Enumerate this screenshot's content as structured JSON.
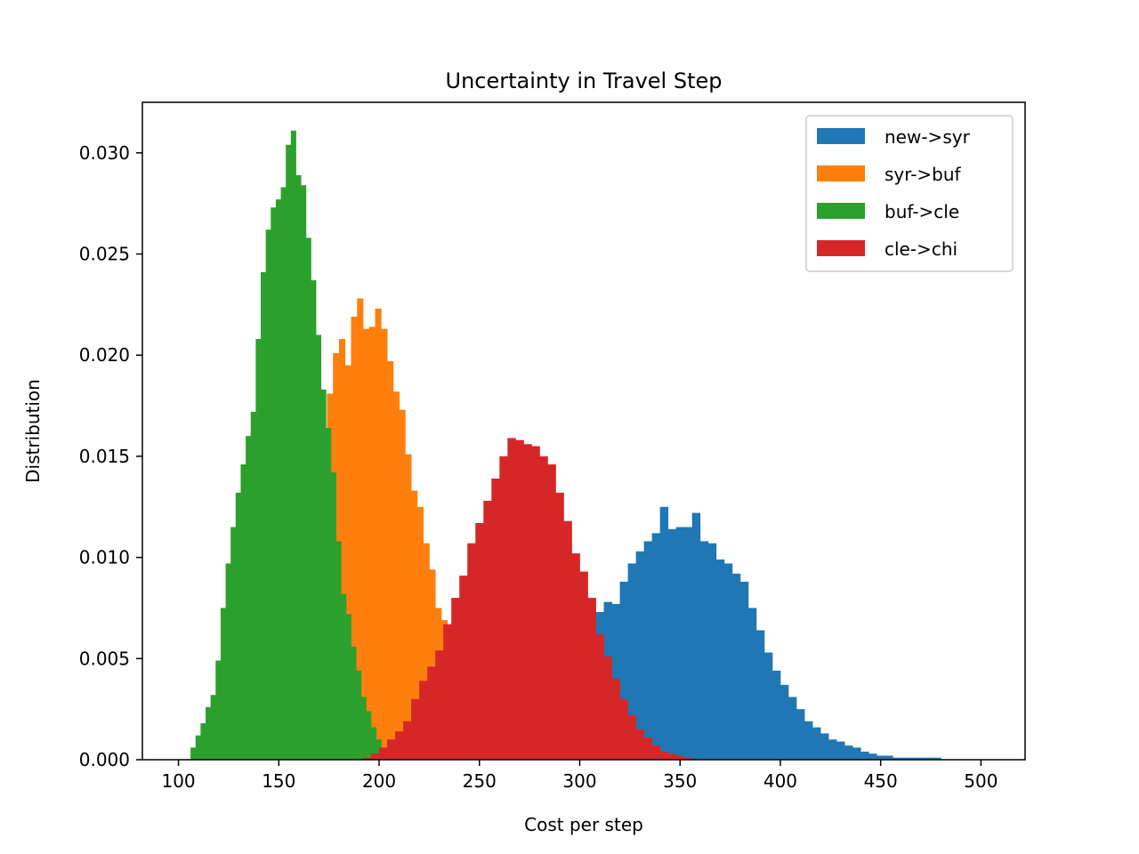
{
  "chart_data": {
    "type": "histogram",
    "title": "Uncertainty in Travel Step",
    "xlabel": "Cost per step",
    "ylabel": "Distribution",
    "xlim": [
      82,
      1000000000.0
    ],
    "xlim_display": [
      82,
      522
    ],
    "ylim": [
      0,
      0.0325
    ],
    "xticks": [
      100,
      150,
      200,
      250,
      300,
      350,
      400,
      450,
      500
    ],
    "yticks": [
      0.0,
      0.005,
      0.01,
      0.015,
      0.02,
      0.025,
      0.03
    ],
    "ytick_labels": [
      "0.000",
      "0.005",
      "0.010",
      "0.015",
      "0.020",
      "0.025",
      "0.030"
    ],
    "grid": false,
    "legend_position": "top-right",
    "series": [
      {
        "name": "new->syr",
        "color": "#1f77b4",
        "bin_start": 300,
        "bin_width": 4,
        "values": [
          0.0055,
          0.0065,
          0.0073,
          0.0078,
          0.0077,
          0.0088,
          0.0097,
          0.0103,
          0.0108,
          0.0112,
          0.0125,
          0.0114,
          0.0115,
          0.0115,
          0.0122,
          0.0108,
          0.0107,
          0.0099,
          0.0097,
          0.0092,
          0.0088,
          0.0075,
          0.0064,
          0.0053,
          0.0044,
          0.0037,
          0.0031,
          0.0025,
          0.0019,
          0.0016,
          0.0013,
          0.001,
          0.0009,
          0.0007,
          0.0006,
          0.0004,
          0.0003,
          0.0002,
          0.0002,
          0.0001,
          0.0001,
          0.0001,
          0.0001,
          0.0001,
          0.0001,
          0.0,
          0.0,
          0.0,
          0.0,
          0.0,
          0.0,
          0.0,
          0.0
        ]
      },
      {
        "name": "syr->buf",
        "color": "#ff7f0e",
        "bin_start": 165,
        "bin_width": 3,
        "values": [
          0.0123,
          0.0136,
          0.0164,
          0.0181,
          0.0201,
          0.0208,
          0.0195,
          0.0219,
          0.0228,
          0.0213,
          0.0214,
          0.0223,
          0.0213,
          0.0197,
          0.0182,
          0.0173,
          0.0151,
          0.0133,
          0.0125,
          0.0107,
          0.0094,
          0.0075,
          0.0069,
          0.0061,
          0.0049,
          0.0035,
          0.0028
        ]
      },
      {
        "name": "buf->cle",
        "color": "#2ca02c",
        "bin_start": 106,
        "bin_width": 2.5,
        "values": [
          0.0006,
          0.0012,
          0.0018,
          0.0026,
          0.0032,
          0.0049,
          0.0075,
          0.0097,
          0.0115,
          0.0132,
          0.0146,
          0.016,
          0.0172,
          0.0208,
          0.0241,
          0.0262,
          0.0273,
          0.0277,
          0.0283,
          0.0304,
          0.0311,
          0.0289,
          0.0284,
          0.0258,
          0.0237,
          0.021,
          0.0183,
          0.0164,
          0.0142,
          0.0108,
          0.0082,
          0.0072,
          0.0056,
          0.0044,
          0.0031,
          0.0024,
          0.0016,
          0.001,
          0.0005,
          0.0002
        ]
      },
      {
        "name": "cle->chi",
        "color": "#d62728",
        "bin_start": 192,
        "bin_width": 4,
        "values": [
          0.0001,
          0.0003,
          0.0006,
          0.001,
          0.0014,
          0.0019,
          0.003,
          0.0039,
          0.0046,
          0.0054,
          0.0067,
          0.008,
          0.0091,
          0.0107,
          0.0117,
          0.0128,
          0.0139,
          0.015,
          0.0159,
          0.0158,
          0.0156,
          0.0155,
          0.015,
          0.0146,
          0.0132,
          0.0118,
          0.0102,
          0.0093,
          0.008,
          0.0062,
          0.0051,
          0.004,
          0.003,
          0.0022,
          0.0015,
          0.0011,
          0.0007,
          0.0004,
          0.0003,
          0.0002,
          0.0001
        ]
      }
    ]
  }
}
